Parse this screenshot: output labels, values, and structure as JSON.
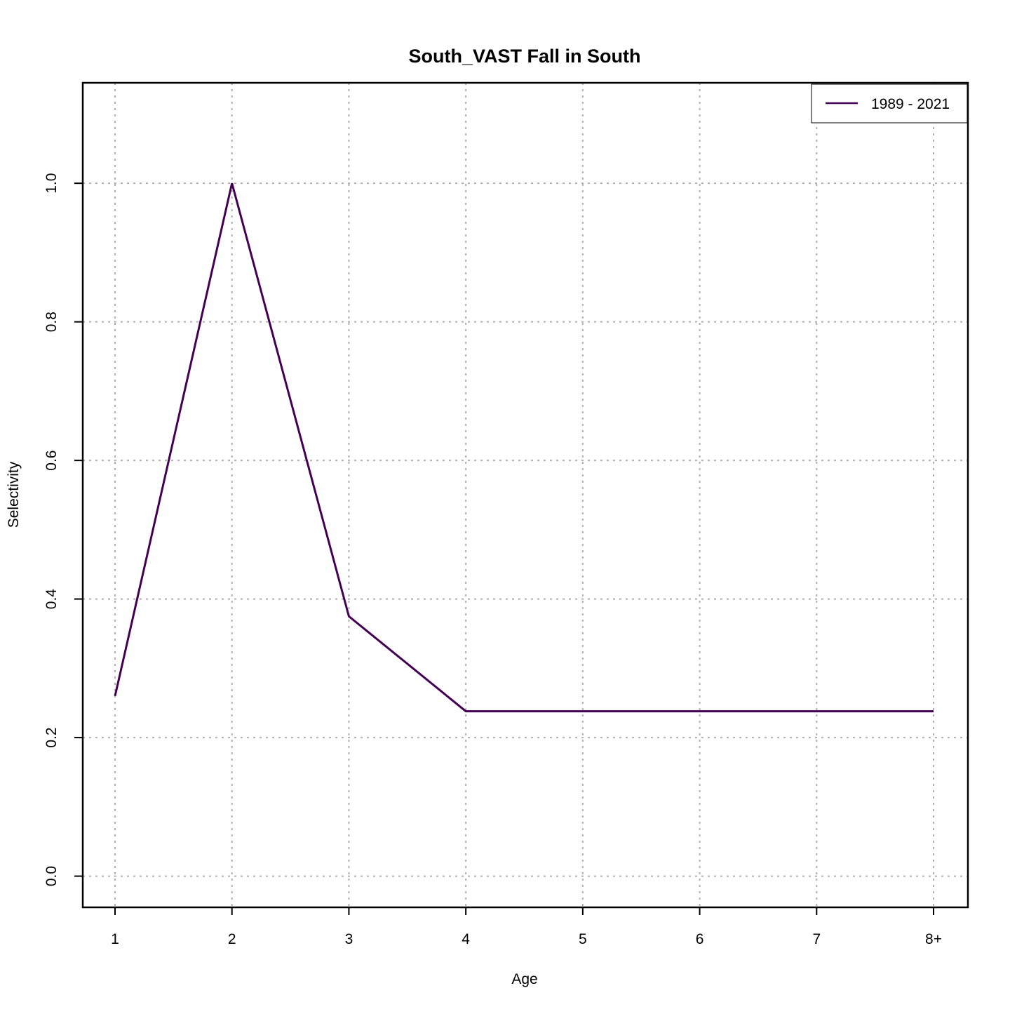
{
  "chart_data": {
    "type": "line",
    "title": "South_VAST Fall in South",
    "xlabel": "Age",
    "ylabel": "Selectivity",
    "categories": [
      "1",
      "2",
      "3",
      "4",
      "5",
      "6",
      "7",
      "8+"
    ],
    "series": [
      {
        "name": "1989 - 2021",
        "color": "#440154",
        "values": [
          0.26,
          1.0,
          0.375,
          0.238,
          0.238,
          0.238,
          0.238,
          0.238
        ]
      }
    ],
    "ylim": [
      -0.045,
      1.145
    ],
    "yticks": [
      0.0,
      0.2,
      0.4,
      0.6,
      0.8,
      1.0
    ],
    "ytick_labels": [
      "0.0",
      "0.2",
      "0.4",
      "0.6",
      "0.8",
      "1.0"
    ],
    "grid": true,
    "grid_color": "#b0b0b0",
    "legend_position": "top-right"
  }
}
